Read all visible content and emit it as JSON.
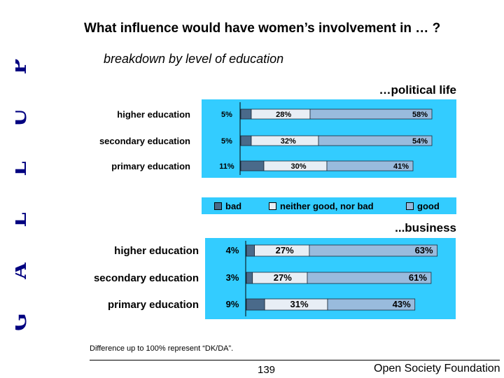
{
  "header": {
    "title": "What influence would have women’s involvement in … ?",
    "subtitle": "breakdown by level of education",
    "side_text": [
      "G",
      "A",
      "L",
      "L",
      "U",
      "P"
    ]
  },
  "colors": {
    "panel_bg": "#33ccff",
    "bad": "#4a6a8a",
    "neutral": "#e8eef5",
    "good": "#99bbdd"
  },
  "legend": {
    "bad": "bad",
    "neutral": "neither good, nor bad",
    "good": "good"
  },
  "chart_data": [
    {
      "type": "bar",
      "stacked": true,
      "orientation": "horizontal",
      "title": "…political life",
      "categories": [
        "higher education",
        "secondary education",
        "primary education"
      ],
      "series": [
        {
          "name": "bad",
          "values": [
            5,
            5,
            11
          ],
          "labels": [
            "5%",
            "5%",
            "11%"
          ]
        },
        {
          "name": "neither good, nor bad",
          "values": [
            28,
            32,
            30
          ],
          "labels": [
            "28%",
            "32%",
            "30%"
          ]
        },
        {
          "name": "good",
          "values": [
            58,
            54,
            41
          ],
          "labels": [
            "58%",
            "54%",
            "41%"
          ]
        }
      ],
      "xlim": [
        0,
        100
      ]
    },
    {
      "type": "bar",
      "stacked": true,
      "orientation": "horizontal",
      "title": "...business",
      "categories": [
        "higher education",
        "secondary education",
        "primary education"
      ],
      "series": [
        {
          "name": "bad",
          "values": [
            4,
            3,
            9
          ],
          "labels": [
            "4%",
            "3%",
            "9%"
          ]
        },
        {
          "name": "neither good, nor bad",
          "values": [
            27,
            27,
            31
          ],
          "labels": [
            "27%",
            "27%",
            "31%"
          ]
        },
        {
          "name": "good",
          "values": [
            63,
            61,
            43
          ],
          "labels": [
            "63%",
            "61%",
            "43%"
          ]
        }
      ],
      "xlim": [
        0,
        100
      ]
    }
  ],
  "footer": {
    "note": "Difference up to 100% represent “DK/DA”.",
    "page_number": "139",
    "organization": "Open Society Foundation"
  }
}
